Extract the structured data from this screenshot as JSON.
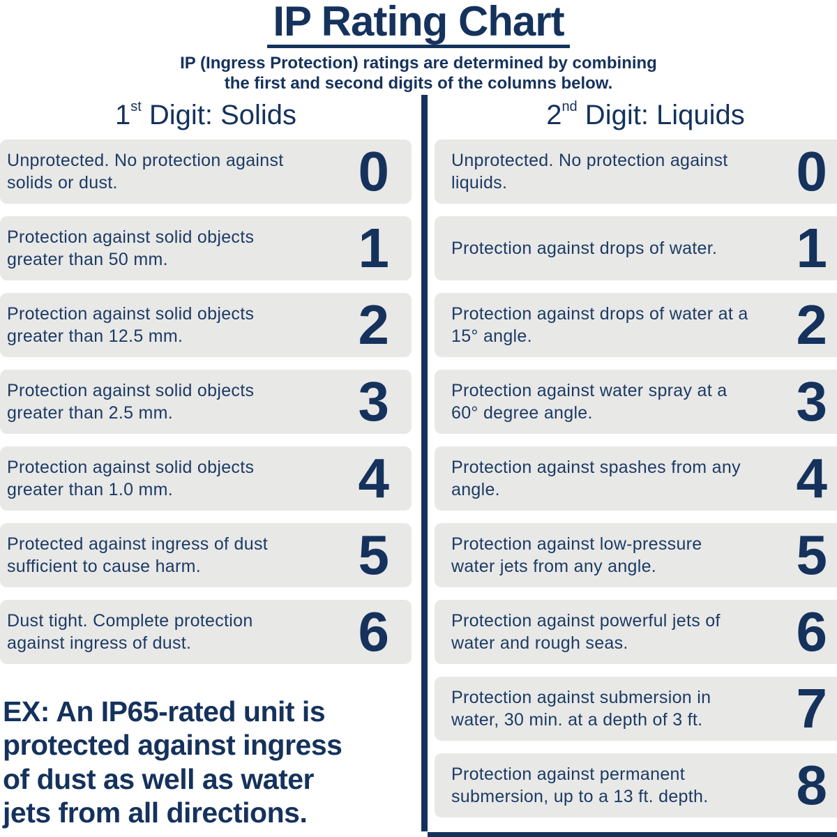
{
  "title": "IP Rating Chart",
  "subtitle": "IP (Ingress Protection) ratings are determined by combining\nthe first and second digits of the columns below.",
  "example_note": "EX: An IP65-rated unit is\nprotected against ingress\nof dust as well as water\njets from all directions.",
  "colors": {
    "navy": "#15325c",
    "row_text": "#1c3b64",
    "row_bg": "#e8e8e7"
  },
  "chart_data": {
    "type": "table",
    "title": "IP Rating Chart",
    "subtitle": "IP (Ingress Protection) ratings are determined by combining the first and second digits of the columns below.",
    "annotation": "EX: An IP65-rated unit is protected against ingress of dust as well as water jets from all directions.",
    "columns": [
      {
        "heading": {
          "num": "1",
          "sup": "st",
          "rest": " Digit: Solids"
        },
        "rows": [
          {
            "digit": "0",
            "text": "Unprotected. No protection against solids or dust."
          },
          {
            "digit": "1",
            "text": "Protection against solid objects greater than 50 mm."
          },
          {
            "digit": "2",
            "text": "Protection against solid objects greater than 12.5 mm."
          },
          {
            "digit": "3",
            "text": "Protection against solid objects greater than 2.5 mm."
          },
          {
            "digit": "4",
            "text": "Protection against solid objects greater than 1.0 mm."
          },
          {
            "digit": "5",
            "text": "Protected against ingress of dust sufficient to cause harm."
          },
          {
            "digit": "6",
            "text": "Dust tight. Complete protection against ingress of dust."
          }
        ]
      },
      {
        "heading": {
          "num": "2",
          "sup": "nd",
          "rest": " Digit: Liquids"
        },
        "rows": [
          {
            "digit": "0",
            "text": "Unprotected. No protection against liquids."
          },
          {
            "digit": "1",
            "text": "Protection against drops of water."
          },
          {
            "digit": "2",
            "text": "Protection against drops of water at a 15° angle."
          },
          {
            "digit": "3",
            "text": "Protection against water spray at a 60° degree angle."
          },
          {
            "digit": "4",
            "text": "Protection against spashes from any angle."
          },
          {
            "digit": "5",
            "text": "Protection against low-pressure water jets from any angle."
          },
          {
            "digit": "6",
            "text": "Protection against powerful jets of water and rough seas."
          },
          {
            "digit": "7",
            "text": "Protection against submersion in water, 30 min. at a depth of 3 ft."
          },
          {
            "digit": "8",
            "text": "Protection against permanent submersion, up to a 13 ft. depth."
          }
        ]
      }
    ]
  }
}
